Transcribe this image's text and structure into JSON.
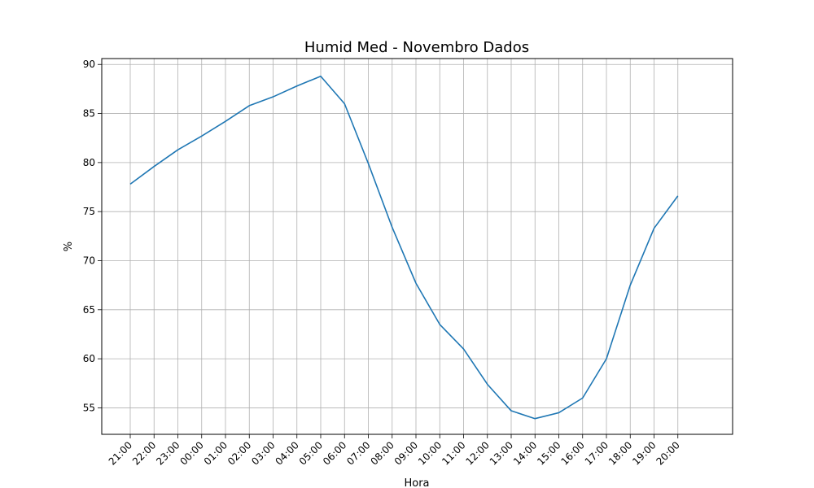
{
  "chart_data": {
    "type": "line",
    "title": "Humid Med - Novembro Dados",
    "xlabel": "Hora",
    "ylabel": "%",
    "x_tick_labels": [
      "21:00",
      "22:00",
      "23:00",
      "00:00",
      "01:00",
      "02:00",
      "03:00",
      "04:00",
      "05:00",
      "06:00",
      "07:00",
      "08:00",
      "09:00",
      "10:00",
      "11:00",
      "12:00",
      "13:00",
      "14:00",
      "15:00",
      "16:00",
      "17:00",
      "18:00",
      "19:00",
      "20:00"
    ],
    "series": [
      {
        "color": "#1f77b4",
        "values": [
          77.8,
          79.6,
          81.3,
          82.7,
          84.2,
          85.8,
          86.7,
          87.8,
          88.8,
          86.0,
          79.9,
          73.4,
          67.7,
          63.5,
          61.0,
          57.4,
          54.7,
          53.9,
          54.5,
          56.0,
          60.0,
          67.5,
          73.3,
          76.6
        ]
      }
    ],
    "ylim": [
      52.3,
      90.6
    ],
    "y_ticks": [
      55,
      60,
      65,
      70,
      75,
      80,
      85,
      90
    ],
    "grid": true
  }
}
